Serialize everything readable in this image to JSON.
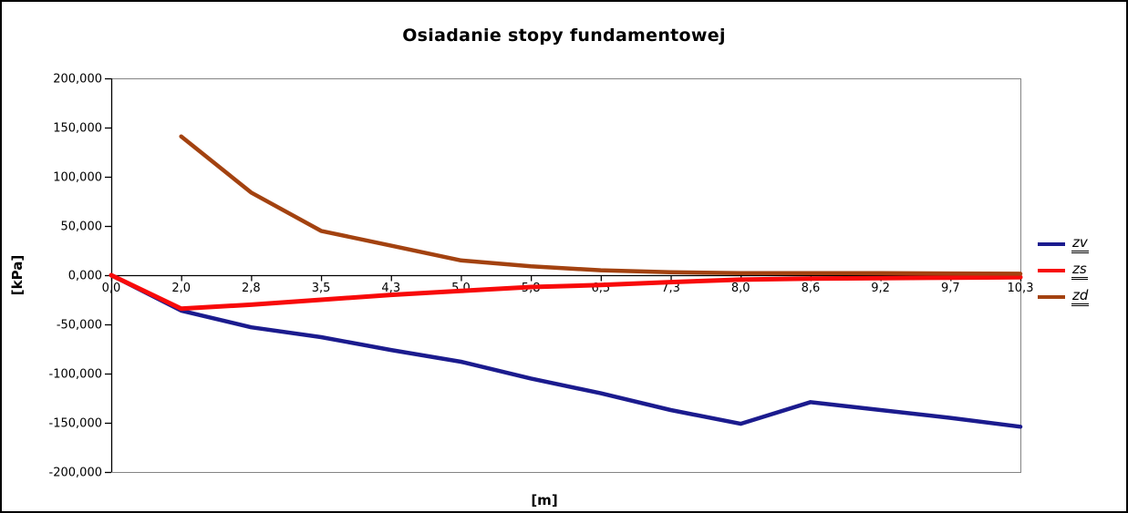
{
  "chart_data": {
    "type": "line",
    "title": "Osiadanie stopy fundamentowej",
    "xlabel": "[m]",
    "ylabel": "[kPa]",
    "x_categories": [
      "0,0",
      "2,0",
      "2,8",
      "3,5",
      "4,3",
      "5,0",
      "5,8",
      "6,5",
      "7,3",
      "8,0",
      "8,6",
      "9,2",
      "9,7",
      "10,3"
    ],
    "y_axis": {
      "min": -200,
      "max": 200,
      "unit": "kPa",
      "ticks": [
        {
          "label": "200,000",
          "value": 200
        },
        {
          "label": "150,000",
          "value": 150
        },
        {
          "label": "100,000",
          "value": 100
        },
        {
          "label": "50,000",
          "value": 50
        },
        {
          "label": "0,000",
          "value": 0
        },
        {
          "label": "-50,000",
          "value": -50
        },
        {
          "label": "-100,000",
          "value": -100
        },
        {
          "label": "-150,000",
          "value": -150
        },
        {
          "label": "-200,000",
          "value": -200
        }
      ]
    },
    "grid": false,
    "legend_position": "right",
    "series": [
      {
        "name": "zv",
        "color": "#1B1B8E",
        "values": [
          0,
          -36,
          -53,
          -63,
          -76,
          -88,
          -105,
          -120,
          -137,
          -151,
          -129,
          -137,
          -145,
          -154
        ]
      },
      {
        "name": "zs",
        "color": "#F80A0A",
        "values": [
          0,
          -34,
          -30,
          -25,
          -20,
          -16,
          -12,
          -10,
          -7,
          -4.5,
          -3.5,
          -3,
          -2.5,
          -2
        ]
      },
      {
        "name": "zd",
        "color": "#A34210",
        "values": [
          null,
          141,
          84,
          45,
          30,
          15,
          9,
          5,
          3,
          2,
          2,
          2,
          1.8,
          1.5
        ]
      }
    ]
  },
  "colors": {
    "axis": "#000000",
    "plot_border": "#848484",
    "background": "#FFFFFF",
    "text": "#000000"
  }
}
